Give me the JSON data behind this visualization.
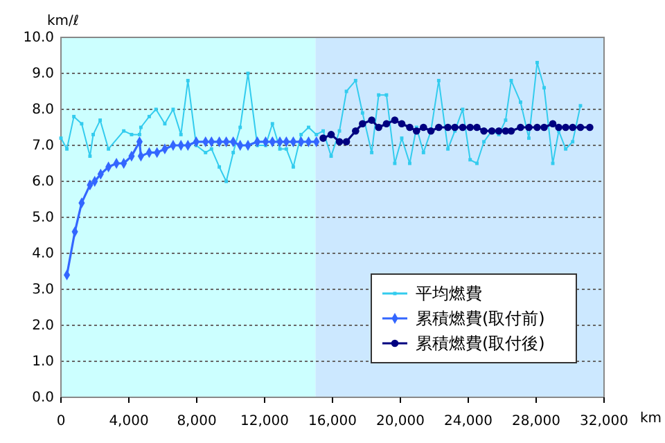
{
  "chart_data": {
    "type": "line",
    "xlabel": "km",
    "ylabel": "km/ℓ",
    "xlim": [
      0,
      32000
    ],
    "ylim": [
      0,
      10
    ],
    "xticks": [
      0,
      {
        "value": 4000,
        "label": "4,000"
      },
      {
        "value": 8000,
        "label": "8,000"
      },
      {
        "value": 12000,
        "label": "12,000"
      },
      {
        "value": 16000,
        "label": "16,000"
      },
      {
        "value": 20000,
        "label": "20,000"
      },
      {
        "value": 24000,
        "label": "24,000"
      },
      {
        "value": 28000,
        "label": "28,000"
      },
      {
        "value": 32000,
        "label": "32,000"
      }
    ],
    "yticks": [
      {
        "value": 0,
        "label": "0.0"
      },
      {
        "value": 1,
        "label": "1.0"
      },
      {
        "value": 2,
        "label": "2.0"
      },
      {
        "value": 3,
        "label": "3.0"
      },
      {
        "value": 4,
        "label": "4.0"
      },
      {
        "value": 5,
        "label": "5.0"
      },
      {
        "value": 6,
        "label": "6.0"
      },
      {
        "value": 7,
        "label": "7.0"
      },
      {
        "value": 8,
        "label": "8.0"
      },
      {
        "value": 9,
        "label": "9.0"
      },
      {
        "value": 10,
        "label": "10.0"
      }
    ],
    "grid": "y",
    "legend": "bottom right",
    "bands": [
      {
        "axis": "x",
        "from": 0,
        "to": 15000,
        "color": "#ccffff"
      },
      {
        "axis": "x",
        "from": 15000,
        "to": 32000,
        "color": "#cce8ff"
      }
    ],
    "series": [
      {
        "name": "平均燃費",
        "color": "#33ccee",
        "marker": "square",
        "x": [
          0,
          350,
          760,
          1220,
          1710,
          1900,
          2310,
          2800,
          3700,
          4160,
          4630,
          4710,
          5200,
          5600,
          6120,
          6610,
          7070,
          7480,
          7970,
          8520,
          8870,
          9330,
          9740,
          10150,
          10560,
          11020,
          11570,
          12060,
          12460,
          12900,
          13280,
          13690,
          14150,
          14590,
          15050,
          15450,
          15920,
          16410,
          16820,
          17360,
          17770,
          18310,
          18720,
          19180,
          19670,
          20080,
          20550,
          20950,
          21360,
          21800,
          22260,
          22800,
          23210,
          23670,
          24110,
          24510,
          24920,
          25390,
          25800,
          26200,
          26530,
          27080,
          27570,
          28060,
          28470,
          28980,
          29330,
          29740,
          30150,
          30610
        ],
        "values": [
          7.2,
          6.9,
          7.8,
          7.6,
          6.7,
          7.3,
          7.7,
          6.9,
          7.4,
          7.3,
          7.3,
          7.5,
          7.8,
          8.0,
          7.6,
          8.0,
          7.3,
          8.8,
          7.0,
          6.8,
          6.9,
          6.4,
          6.0,
          6.8,
          7.5,
          9.0,
          7.0,
          7.0,
          7.6,
          6.9,
          6.9,
          6.4,
          7.3,
          7.5,
          7.3,
          7.4,
          6.7,
          7.4,
          8.5,
          8.8,
          7.9,
          6.8,
          8.4,
          8.4,
          6.5,
          7.2,
          6.5,
          7.5,
          6.8,
          7.4,
          8.8,
          6.9,
          7.4,
          8.0,
          6.6,
          6.5,
          7.1,
          7.4,
          7.3,
          7.7,
          8.8,
          8.2,
          7.2,
          9.3,
          8.6,
          6.5,
          7.4,
          6.9,
          7.1,
          8.1
        ]
      },
      {
        "name": "累積燃費(取付前)",
        "color": "#3366ff",
        "marker": "diamond",
        "x": [
          350,
          820,
          1220,
          1710,
          1990,
          2340,
          2800,
          3270,
          3700,
          4160,
          4630,
          4710,
          5200,
          5660,
          6120,
          6610,
          7070,
          7480,
          7970,
          8520,
          8870,
          9330,
          9740,
          10150,
          10560,
          11020,
          11570,
          12060,
          12460,
          12900,
          13280,
          13690,
          14150,
          14590,
          15050
        ],
        "values": [
          3.4,
          4.6,
          5.4,
          5.9,
          6.0,
          6.2,
          6.4,
          6.5,
          6.5,
          6.7,
          7.1,
          6.7,
          6.8,
          6.8,
          6.9,
          7.0,
          7.0,
          7.0,
          7.1,
          7.1,
          7.1,
          7.1,
          7.1,
          7.1,
          7.0,
          7.0,
          7.1,
          7.1,
          7.1,
          7.1,
          7.1,
          7.1,
          7.1,
          7.1,
          7.1
        ]
      },
      {
        "name": "累積燃費(取付後)",
        "color": "#000080",
        "marker": "circle",
        "x": [
          15450,
          15920,
          16410,
          16820,
          17360,
          17770,
          18310,
          18720,
          19180,
          19670,
          20080,
          20550,
          20950,
          21360,
          21800,
          22260,
          22800,
          23210,
          23670,
          24110,
          24510,
          24920,
          25390,
          25800,
          26200,
          26530,
          27080,
          27570,
          28060,
          28470,
          28980,
          29330,
          29740,
          30150,
          30610,
          31160
        ],
        "values": [
          7.2,
          7.3,
          7.1,
          7.1,
          7.4,
          7.6,
          7.7,
          7.5,
          7.6,
          7.7,
          7.6,
          7.5,
          7.4,
          7.5,
          7.4,
          7.5,
          7.5,
          7.5,
          7.5,
          7.5,
          7.5,
          7.4,
          7.4,
          7.4,
          7.4,
          7.4,
          7.5,
          7.5,
          7.5,
          7.5,
          7.6,
          7.5,
          7.5,
          7.5,
          7.5,
          7.5
        ]
      }
    ]
  }
}
